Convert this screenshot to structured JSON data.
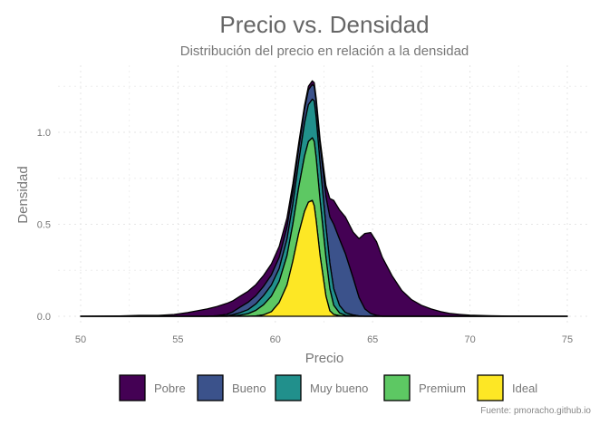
{
  "chart_data": {
    "type": "area",
    "stacked": true,
    "title": "Precio vs. Densidad",
    "subtitle": "Distribución del precio en relación a la densidad",
    "xlabel": "Precio",
    "ylabel": "Densidad",
    "caption": "Fuente: pmoracho.github.io",
    "xlim": [
      50,
      75
    ],
    "ylim": [
      0,
      1.3
    ],
    "x_ticks": [
      50,
      55,
      60,
      65,
      70,
      75
    ],
    "y_ticks": [
      0.0,
      0.5,
      1.0
    ],
    "x_tick_labels": [
      "50",
      "55",
      "60",
      "65",
      "70",
      "75"
    ],
    "y_tick_labels": [
      "0.0",
      "0.5",
      "1.0"
    ],
    "grid": true,
    "legend_position": "bottom",
    "x": [
      50,
      52,
      53,
      54,
      54.8,
      55.5,
      56,
      56.5,
      57,
      57.5,
      57.8,
      58.2,
      58.6,
      59,
      59.4,
      59.8,
      60.2,
      60.6,
      60.9,
      61.2,
      61.5,
      61.7,
      61.9,
      62,
      62.1,
      62.3,
      62.6,
      62.8,
      63,
      63.3,
      63.6,
      64,
      64.3,
      64.6,
      64.9,
      65.2,
      65.5,
      66,
      66.5,
      67,
      67.5,
      68,
      68.5,
      69,
      69.5,
      70,
      71,
      72,
      75
    ],
    "series": [
      {
        "name": "Ideal",
        "color": "#FDE725",
        "values": [
          0,
          0,
          0,
          0,
          0,
          0,
          0,
          0,
          0,
          0,
          0,
          0,
          0,
          0.002,
          0.008,
          0.025,
          0.075,
          0.17,
          0.3,
          0.45,
          0.57,
          0.62,
          0.63,
          0.6,
          0.52,
          0.33,
          0.11,
          0.03,
          0.01,
          0.003,
          0,
          0,
          0,
          0,
          0,
          0,
          0,
          0,
          0,
          0,
          0,
          0,
          0,
          0,
          0,
          0,
          0,
          0,
          0
        ]
      },
      {
        "name": "Premium",
        "color": "#5DC863",
        "values": [
          0,
          0,
          0,
          0,
          0,
          0,
          0,
          0,
          0,
          0,
          0.002,
          0.006,
          0.014,
          0.03,
          0.055,
          0.085,
          0.115,
          0.16,
          0.2,
          0.25,
          0.3,
          0.33,
          0.34,
          0.35,
          0.34,
          0.3,
          0.21,
          0.12,
          0.05,
          0.015,
          0.005,
          0.002,
          0,
          0,
          0,
          0,
          0,
          0,
          0,
          0,
          0,
          0,
          0,
          0,
          0,
          0,
          0,
          0,
          0
        ]
      },
      {
        "name": "Muy bueno",
        "color": "#21908C",
        "values": [
          0,
          0,
          0,
          0,
          0,
          0,
          0,
          0,
          0,
          0.002,
          0.006,
          0.014,
          0.022,
          0.035,
          0.05,
          0.06,
          0.07,
          0.09,
          0.11,
          0.14,
          0.18,
          0.2,
          0.21,
          0.22,
          0.22,
          0.2,
          0.17,
          0.14,
          0.09,
          0.04,
          0.015,
          0.005,
          0.002,
          0,
          0,
          0,
          0,
          0,
          0,
          0,
          0,
          0,
          0,
          0,
          0,
          0,
          0,
          0,
          0
        ]
      },
      {
        "name": "Bueno",
        "color": "#3B528B",
        "values": [
          0,
          0,
          0,
          0,
          0,
          0,
          0,
          0,
          0.003,
          0.008,
          0.015,
          0.03,
          0.04,
          0.045,
          0.05,
          0.055,
          0.06,
          0.065,
          0.07,
          0.07,
          0.075,
          0.08,
          0.08,
          0.08,
          0.085,
          0.1,
          0.16,
          0.25,
          0.35,
          0.36,
          0.32,
          0.2,
          0.1,
          0.04,
          0.015,
          0.005,
          0,
          0,
          0,
          0,
          0,
          0,
          0,
          0,
          0,
          0,
          0,
          0,
          0
        ]
      },
      {
        "name": "Pobre",
        "color": "#440154",
        "values": [
          0,
          0.002,
          0.005,
          0.005,
          0.01,
          0.02,
          0.03,
          0.04,
          0.05,
          0.06,
          0.06,
          0.06,
          0.06,
          0.06,
          0.06,
          0.06,
          0.06,
          0.05,
          0.04,
          0.03,
          0.02,
          0.02,
          0.02,
          0.02,
          0.02,
          0.03,
          0.06,
          0.1,
          0.13,
          0.16,
          0.2,
          0.25,
          0.32,
          0.41,
          0.44,
          0.4,
          0.32,
          0.22,
          0.14,
          0.09,
          0.06,
          0.04,
          0.025,
          0.015,
          0.01,
          0.006,
          0.003,
          0.001,
          0
        ]
      }
    ],
    "legend_order": [
      "Pobre",
      "Bueno",
      "Muy bueno",
      "Premium",
      "Ideal"
    ]
  }
}
